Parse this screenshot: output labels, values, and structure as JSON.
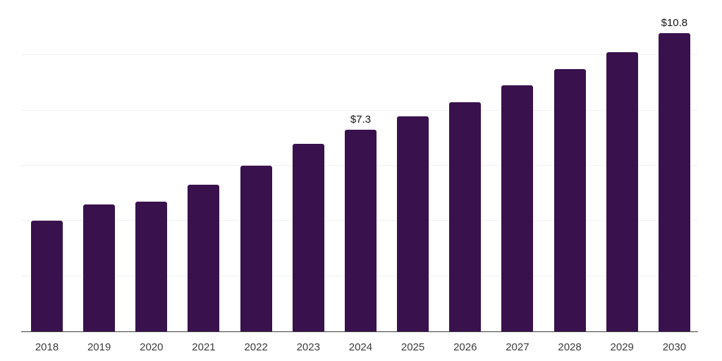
{
  "chart_data": {
    "type": "bar",
    "title": "",
    "xlabel": "",
    "ylabel": "",
    "categories": [
      "2018",
      "2019",
      "2020",
      "2021",
      "2022",
      "2023",
      "2024",
      "2025",
      "2026",
      "2027",
      "2028",
      "2029",
      "2030"
    ],
    "values": [
      4.0,
      4.6,
      4.7,
      5.3,
      6.0,
      6.8,
      7.3,
      7.8,
      8.3,
      8.9,
      9.5,
      10.1,
      10.8
    ],
    "annotations": [
      {
        "category": "2024",
        "text": "$7.3"
      },
      {
        "category": "2030",
        "text": "$10.8"
      }
    ],
    "ylim": [
      0,
      12
    ],
    "gridline_values": [
      2,
      4,
      6,
      8,
      10,
      12
    ],
    "grid": true,
    "legend": false,
    "y_axis_labels_visible": false
  },
  "style": {
    "bar_color": "#39114D",
    "gridline_color": "#f2f2f2",
    "axis_line_color": "#3d3d3d",
    "tick_label_color": "#3c3c3c",
    "data_label_color": "#141414",
    "background_color": "#ffffff"
  }
}
